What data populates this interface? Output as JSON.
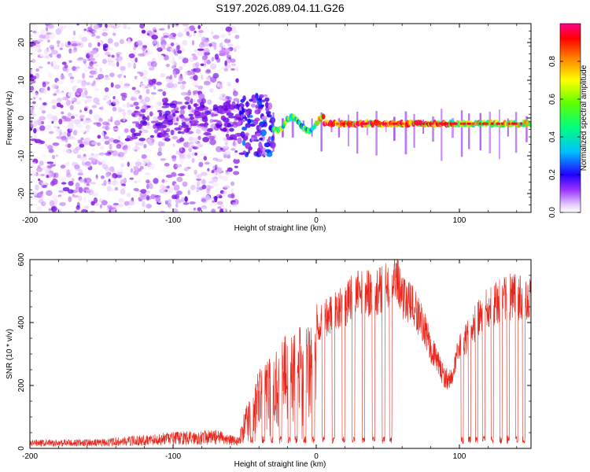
{
  "figure": {
    "title": "S197.2026.089.04.11.G26"
  },
  "chart_data": [
    {
      "type": "heatmap",
      "title": "S197.2026.089.04.11.G26",
      "xlabel": "Height of straight line (km)",
      "ylabel": "Frequency (Hz)",
      "xlim": [
        -200,
        150
      ],
      "ylim": [
        -25,
        25
      ],
      "xticks": [
        -200,
        -100,
        0,
        100
      ],
      "xtick_labels": [
        "-200",
        "-100",
        "0",
        "100"
      ],
      "yticks": [
        -20,
        -10,
        0,
        10,
        20
      ],
      "ytick_labels": [
        "-20",
        "-10",
        "0",
        "10",
        "20"
      ],
      "colorbar": {
        "label": "Normalized spectral amplitude",
        "range": [
          0,
          1
        ],
        "ticks": [
          0.0,
          0.2,
          0.4,
          0.6,
          0.8
        ],
        "tick_labels": [
          "0.0",
          "0.2",
          "0.4",
          "0.6",
          "0.8"
        ],
        "colors": [
          "#ffffff",
          "#cc88ff",
          "#7700dd",
          "#0000ff",
          "#00e0ff",
          "#00ff40",
          "#ffff00",
          "#ff8000",
          "#ff0000",
          "#ff0088"
        ]
      },
      "regions": [
        {
          "name": "noise",
          "x_range": [
            -200,
            -55
          ],
          "freq_range": [
            -25,
            25
          ],
          "amplitude_range": [
            0.0,
            0.25
          ]
        },
        {
          "name": "transition",
          "x_range": [
            -55,
            -30
          ],
          "freq_range": [
            -10,
            6
          ],
          "amplitude_range": [
            0.1,
            0.4
          ]
        },
        {
          "name": "carrier",
          "x_range": [
            -30,
            150
          ],
          "freq_center": -1.5,
          "amplitude_range": [
            0.2,
            1.0
          ]
        }
      ]
    },
    {
      "type": "line",
      "xlabel": "Height of straight line (km)",
      "ylabel": "SNR (10 * v/v)",
      "xlim": [
        -200,
        150
      ],
      "ylim": [
        0,
        600
      ],
      "xticks": [
        -200,
        -100,
        0,
        100
      ],
      "xtick_labels": [
        "-200",
        "-100",
        "0",
        "100"
      ],
      "yticks": [
        0,
        200,
        400,
        600
      ],
      "ytick_labels": [
        "0",
        "200",
        "400",
        "600"
      ],
      "color": "#e8261c",
      "series": [
        {
          "name": "SNR",
          "envelope": {
            "x": [
              -200,
              -150,
              -100,
              -70,
              -55,
              -50,
              -40,
              -30,
              -20,
              -10,
              0,
              10,
              20,
              30,
              40,
              50,
              55,
              60,
              70,
              75,
              80,
              85,
              90,
              95,
              100,
              110,
              120,
              130,
              140,
              150
            ],
            "y": [
              18,
              20,
              35,
              40,
              25,
              120,
              250,
              300,
              380,
              390,
              410,
              440,
              470,
              520,
              500,
              540,
              590,
              500,
              450,
              400,
              330,
              280,
              230,
              230,
              330,
              400,
              460,
              490,
              500,
              480
            ]
          },
          "dropouts_x": [
            -45,
            -37,
            -31,
            -25,
            -19,
            -14,
            -8,
            -2,
            5,
            12,
            19,
            26,
            33,
            40,
            47,
            52,
            102,
            107,
            112,
            117,
            123,
            129,
            134,
            140,
            145
          ]
        }
      ]
    }
  ]
}
